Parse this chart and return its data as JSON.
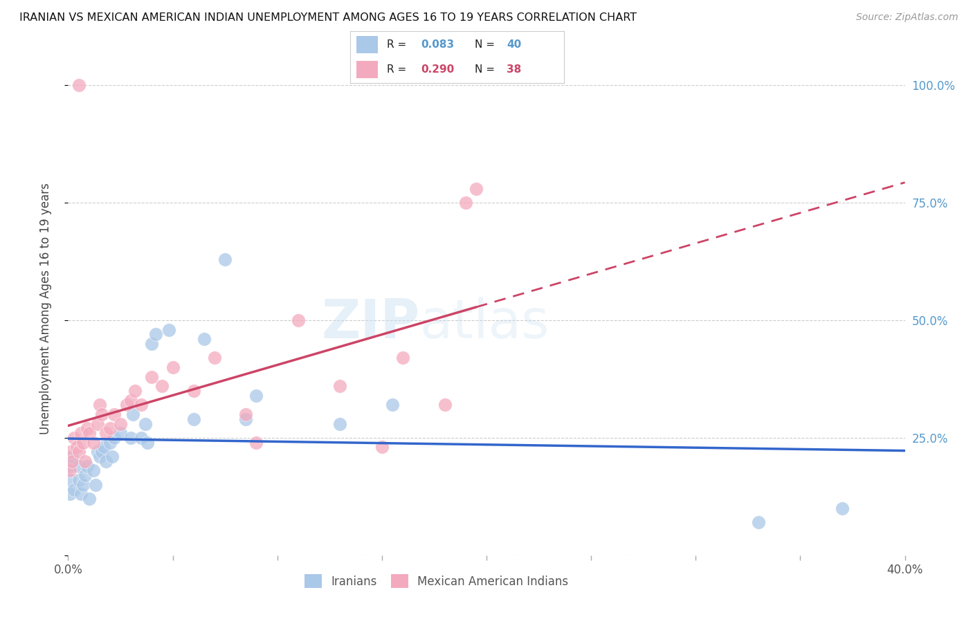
{
  "title": "IRANIAN VS MEXICAN AMERICAN INDIAN UNEMPLOYMENT AMONG AGES 16 TO 19 YEARS CORRELATION CHART",
  "source": "Source: ZipAtlas.com",
  "ylabel": "Unemployment Among Ages 16 to 19 years",
  "xlim": [
    0.0,
    0.4
  ],
  "ylim": [
    0.0,
    1.05
  ],
  "x_ticks": [
    0.0,
    0.05,
    0.1,
    0.15,
    0.2,
    0.25,
    0.3,
    0.35,
    0.4
  ],
  "y_ticks": [
    0.0,
    0.25,
    0.5,
    0.75,
    1.0
  ],
  "y_tick_labels_right": [
    "",
    "25.0%",
    "50.0%",
    "75.0%",
    "100.0%"
  ],
  "watermark": "ZIPatlas",
  "R_iranians": 0.083,
  "N_iranians": 40,
  "R_mexican": 0.29,
  "N_mexican": 38,
  "color_iranians": "#aac8e8",
  "color_mexican": "#f4aabe",
  "color_line_iranians": "#3366cc",
  "color_line_mexican": "#cc4466",
  "color_right_axis": "#5599cc",
  "grid_color": "#cccccc",
  "background_color": "#ffffff",
  "iranians_x": [
    0.001,
    0.001,
    0.001,
    0.002,
    0.003,
    0.005,
    0.005,
    0.006,
    0.007,
    0.008,
    0.009,
    0.01,
    0.012,
    0.013,
    0.014,
    0.015,
    0.016,
    0.017,
    0.018,
    0.02,
    0.021,
    0.022,
    0.025,
    0.03,
    0.031,
    0.035,
    0.037,
    0.038,
    0.04,
    0.042,
    0.048,
    0.06,
    0.065,
    0.075,
    0.085,
    0.09,
    0.13,
    0.155,
    0.33,
    0.37
  ],
  "iranians_y": [
    0.13,
    0.16,
    0.19,
    0.21,
    0.14,
    0.16,
    0.19,
    0.13,
    0.15,
    0.17,
    0.19,
    0.12,
    0.18,
    0.15,
    0.22,
    0.21,
    0.22,
    0.23,
    0.2,
    0.24,
    0.21,
    0.25,
    0.26,
    0.25,
    0.3,
    0.25,
    0.28,
    0.24,
    0.45,
    0.47,
    0.48,
    0.29,
    0.46,
    0.63,
    0.29,
    0.34,
    0.28,
    0.32,
    0.07,
    0.1
  ],
  "mexican_x": [
    0.001,
    0.001,
    0.002,
    0.003,
    0.004,
    0.005,
    0.006,
    0.007,
    0.008,
    0.009,
    0.01,
    0.012,
    0.014,
    0.015,
    0.016,
    0.018,
    0.02,
    0.022,
    0.025,
    0.028,
    0.03,
    0.032,
    0.035,
    0.04,
    0.045,
    0.05,
    0.06,
    0.07,
    0.085,
    0.09,
    0.11,
    0.13,
    0.15,
    0.16,
    0.18,
    0.19,
    0.195,
    0.005
  ],
  "mexican_y": [
    0.18,
    0.22,
    0.2,
    0.25,
    0.23,
    0.22,
    0.26,
    0.24,
    0.2,
    0.27,
    0.26,
    0.24,
    0.28,
    0.32,
    0.3,
    0.26,
    0.27,
    0.3,
    0.28,
    0.32,
    0.33,
    0.35,
    0.32,
    0.38,
    0.36,
    0.4,
    0.35,
    0.42,
    0.3,
    0.24,
    0.5,
    0.36,
    0.23,
    0.42,
    0.32,
    0.75,
    0.78,
    1.0
  ]
}
